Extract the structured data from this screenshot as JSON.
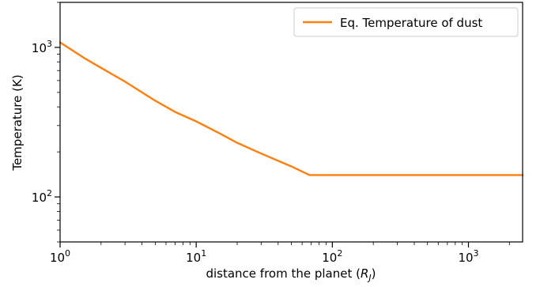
{
  "chart_data": {
    "type": "line",
    "x_scale": "log",
    "y_scale": "log",
    "xlim": [
      1,
      2500
    ],
    "ylim": [
      50,
      2000
    ],
    "xlabel_prefix": "distance from the planet (",
    "xlabel_var": "R",
    "xlabel_sub": "J",
    "xlabel_suffix": ")",
    "ylabel": "Temperature (K)",
    "x_ticks": [
      {
        "base": "10",
        "exp": "0",
        "value": 1
      },
      {
        "base": "10",
        "exp": "1",
        "value": 10
      },
      {
        "base": "10",
        "exp": "2",
        "value": 100
      },
      {
        "base": "10",
        "exp": "3",
        "value": 1000
      }
    ],
    "y_ticks": [
      {
        "base": "10",
        "exp": "2",
        "value": 100
      },
      {
        "base": "10",
        "exp": "3",
        "value": 1000
      }
    ],
    "legend_position": "top-right",
    "series": [
      {
        "name": "Eq. Temperature of dust",
        "color": "#ff7f0e",
        "x": [
          1,
          1.5,
          2,
          3,
          5,
          7,
          10,
          15,
          20,
          30,
          50,
          68,
          100,
          300,
          1000,
          2500
        ],
        "y": [
          1080,
          850,
          730,
          590,
          440,
          370,
          320,
          265,
          230,
          195,
          160,
          140,
          140,
          140,
          140,
          140
        ]
      }
    ]
  }
}
